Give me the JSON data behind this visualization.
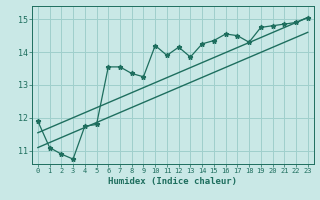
{
  "title": "",
  "xlabel": "Humidex (Indice chaleur)",
  "ylabel": "",
  "xlim": [
    -0.5,
    23.5
  ],
  "ylim": [
    10.6,
    15.4
  ],
  "xticks": [
    0,
    1,
    2,
    3,
    4,
    5,
    6,
    7,
    8,
    9,
    10,
    11,
    12,
    13,
    14,
    15,
    16,
    17,
    18,
    19,
    20,
    21,
    22,
    23
  ],
  "yticks": [
    11,
    12,
    13,
    14,
    15
  ],
  "bg_color": "#c9e8e6",
  "outer_bg": "#c9e8e6",
  "grid_color": "#9fcfcc",
  "line_color": "#1e6e5e",
  "data_x": [
    0,
    1,
    2,
    3,
    4,
    5,
    6,
    7,
    8,
    9,
    10,
    11,
    12,
    13,
    14,
    15,
    16,
    17,
    18,
    19,
    20,
    21,
    22,
    23
  ],
  "data_y": [
    11.9,
    11.1,
    10.9,
    10.75,
    11.75,
    11.8,
    13.55,
    13.55,
    13.35,
    13.25,
    14.2,
    13.9,
    14.15,
    13.85,
    14.25,
    14.35,
    14.55,
    14.5,
    14.3,
    14.75,
    14.8,
    14.85,
    14.9,
    15.05
  ],
  "line1_x": [
    0,
    23
  ],
  "line1_y": [
    11.55,
    15.05
  ],
  "line2_x": [
    0,
    23
  ],
  "line2_y": [
    11.1,
    14.6
  ]
}
